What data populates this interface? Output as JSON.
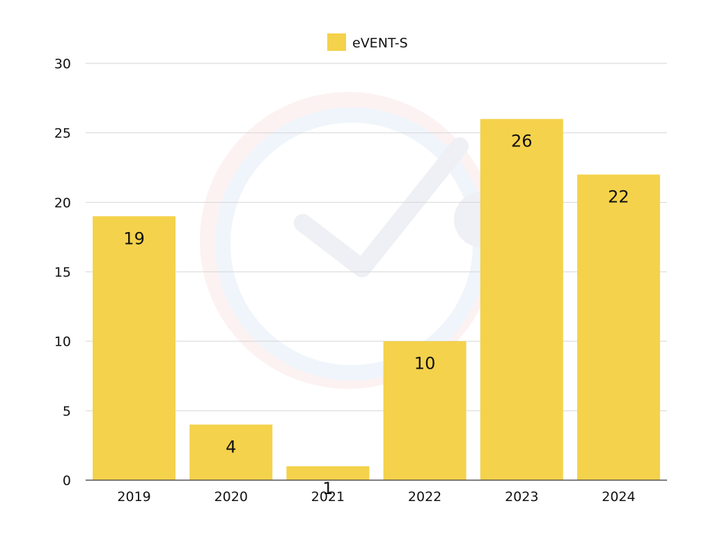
{
  "chart_data": {
    "type": "bar",
    "categories": [
      "2019",
      "2020",
      "2021",
      "2022",
      "2023",
      "2024"
    ],
    "series": [
      {
        "name": "eVENT-S",
        "values": [
          19,
          4,
          1,
          10,
          26,
          22
        ],
        "color": "#F4D24B"
      }
    ],
    "yticks": [
      0,
      5,
      10,
      15,
      20,
      25,
      30
    ],
    "ylim": [
      0,
      30
    ],
    "grid": true,
    "legend": "top-center",
    "data_labels": true,
    "colors": {
      "bar": "#F4D24B",
      "grid": "#d6d6d6",
      "axis": "#555555",
      "text": "#111111"
    },
    "watermark": "check-circle-logo"
  }
}
